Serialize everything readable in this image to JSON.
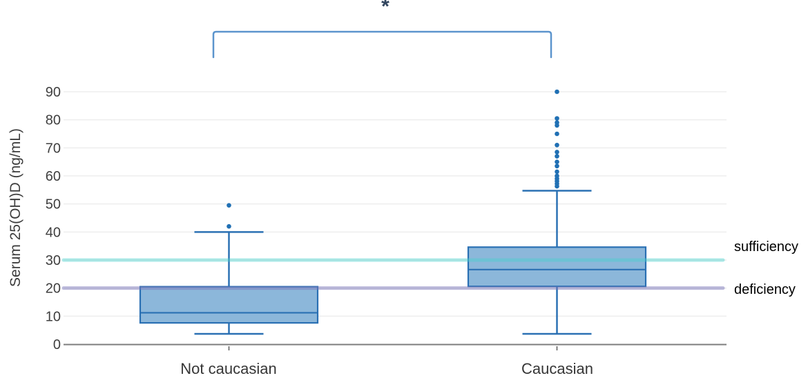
{
  "chart_data": {
    "type": "box",
    "title": "",
    "ylabel": "Serum 25(OH)D (ng/mL)",
    "xlabel": "",
    "categories": [
      "Not caucasian",
      "Caucasian"
    ],
    "yticks": [
      0,
      10,
      20,
      30,
      40,
      50,
      60,
      70,
      80,
      90
    ],
    "ylim": [
      0,
      95
    ],
    "grid": "horizontal",
    "legend": "none",
    "series": [
      {
        "name": "Not caucasian",
        "whisker_low": 3.7,
        "q1": 7.6,
        "median": 11.2,
        "q3": 20.5,
        "whisker_high": 40,
        "outliers": [
          42,
          49.5
        ]
      },
      {
        "name": "Caucasian",
        "whisker_low": 3.7,
        "q1": 20.6,
        "median": 26.6,
        "q3": 34.6,
        "whisker_high": 54.7,
        "outliers": [
          56.3,
          57.2,
          58.1,
          59,
          60,
          61.5,
          63.5,
          65,
          67,
          68.5,
          71,
          75,
          78,
          79,
          80.5,
          90
        ]
      }
    ],
    "reference_lines": [
      {
        "label": "sufficiency",
        "value": 30
      },
      {
        "label": "deficiency",
        "value": 20
      }
    ],
    "significance": {
      "symbol": "*",
      "from": "Not caucasian",
      "to": "Caucasian"
    }
  },
  "colors": {
    "box_fill": "#8cb7da",
    "box_border": "#2a70b3",
    "outlier_dot": "#2070b4",
    "whisker": "#2a70b3",
    "bracket": "#5b94cd",
    "asterisk": "#31455e",
    "sufficiency_line": "rgba(72,209,204,0.45)",
    "deficiency_line": "rgba(122,118,185,0.5)",
    "gridline": "#ededed",
    "axis_line": "#7d7d7d",
    "category_tick": "#5a5a5a",
    "tick_label": "#3f3f3f",
    "category_label": "#363636",
    "side_label": "#000000"
  }
}
